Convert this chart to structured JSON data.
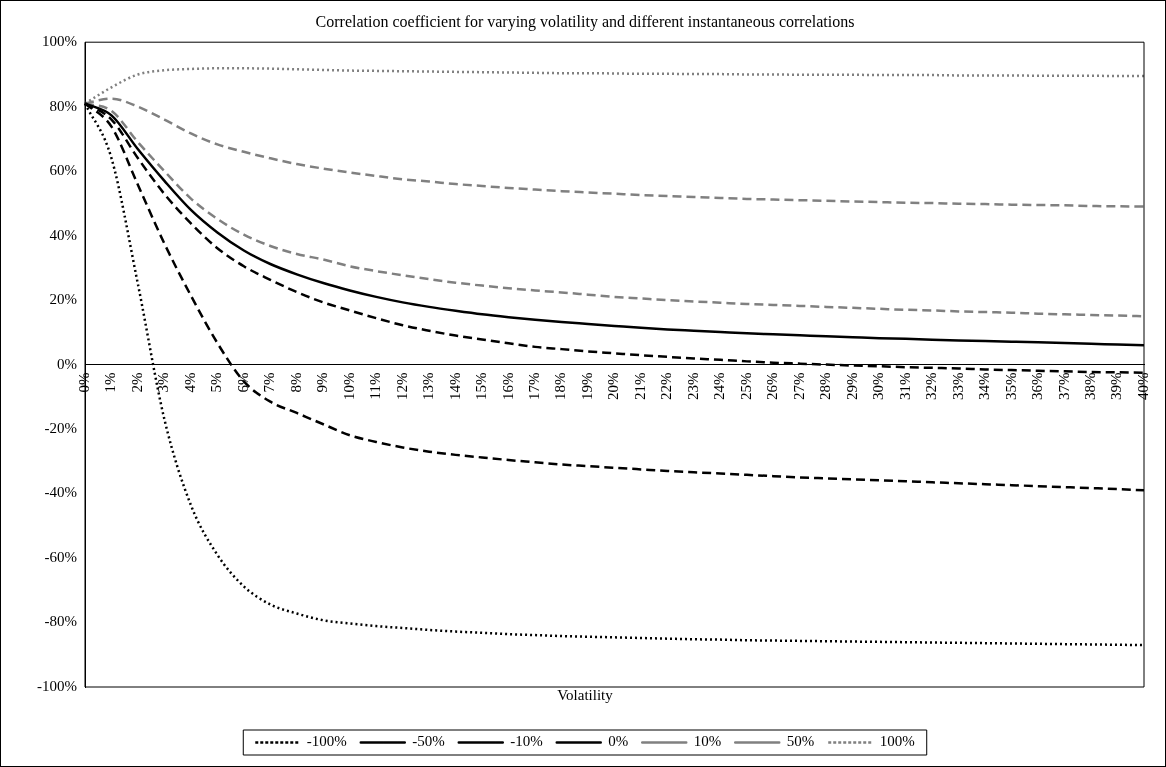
{
  "chart_data": {
    "type": "line",
    "title": "Correlation coefficient for varying volatility and different instantaneous correlations",
    "xlabel": "Volatility",
    "categories": [
      "0%",
      "1%",
      "2%",
      "3%",
      "4%",
      "5%",
      "6%",
      "7%",
      "8%",
      "9%",
      "10%",
      "11%",
      "12%",
      "13%",
      "14%",
      "15%",
      "16%",
      "17%",
      "18%",
      "19%",
      "20%",
      "21%",
      "22%",
      "23%",
      "24%",
      "25%",
      "26%",
      "27%",
      "28%",
      "29%",
      "30%",
      "31%",
      "32%",
      "33%",
      "34%",
      "35%",
      "36%",
      "37%",
      "38%",
      "39%",
      "40%"
    ],
    "ylim": [
      -100,
      100
    ],
    "yticks": [
      {
        "value": -100,
        "label": "-100%"
      },
      {
        "value": -80,
        "label": "-80%"
      },
      {
        "value": -60,
        "label": "-60%"
      },
      {
        "value": -40,
        "label": "-40%"
      },
      {
        "value": -20,
        "label": "-20%"
      },
      {
        "value": 0,
        "label": "0%"
      },
      {
        "value": 20,
        "label": "20%"
      },
      {
        "value": 40,
        "label": "40%"
      },
      {
        "value": 60,
        "label": "60%"
      },
      {
        "value": 80,
        "label": "80%"
      },
      {
        "value": 100,
        "label": "100%"
      }
    ],
    "grid": false,
    "legend": "bottom",
    "marker": "none",
    "series": [
      {
        "name": "-100%",
        "color": "#000000",
        "line_style": "dotted",
        "values": [
          81,
          64,
          24.9,
          -17,
          -43.6,
          -59,
          -68.8,
          -74.4,
          -77.2,
          -79.3,
          -80.3,
          -81.1,
          -81.7,
          -82.3,
          -82.8,
          -83.2,
          -83.6,
          -83.9,
          -84.2,
          -84.4,
          -84.6,
          -84.8,
          -85,
          -85.2,
          -85.3,
          -85.5,
          -85.6,
          -85.7,
          -85.8,
          -85.9,
          -86,
          -86.1,
          -86.2,
          -86.3,
          -86.4,
          -86.5,
          -86.6,
          -86.7,
          -86.8,
          -86.9,
          -87
        ]
      },
      {
        "name": "-50%",
        "color": "#000000",
        "line_style": "dashed",
        "values": [
          81,
          73.8,
          55.7,
          37.5,
          21.4,
          6.7,
          -5.2,
          -11.5,
          -15,
          -18.5,
          -21.9,
          -24,
          -25.7,
          -27,
          -28,
          -28.8,
          -29.6,
          -30.3,
          -31,
          -31.5,
          -32,
          -32.5,
          -33,
          -33.4,
          -33.8,
          -34.2,
          -34.6,
          -35,
          -35.3,
          -35.6,
          -35.9,
          -36.2,
          -36.5,
          -36.8,
          -37.1,
          -37.4,
          -37.7,
          -38,
          -38.3,
          -38.6,
          -39
        ]
      },
      {
        "name": "-10%",
        "color": "#000000",
        "line_style": "dashed",
        "values": [
          81,
          76,
          64,
          52.9,
          43.8,
          36.1,
          30.5,
          26.3,
          22.5,
          19.3,
          16.8,
          14.4,
          12.2,
          10.5,
          9,
          7.8,
          6.6,
          5.5,
          4.8,
          4.1,
          3.5,
          2.9,
          2.4,
          1.9,
          1.5,
          1,
          0.6,
          0.3,
          0,
          -0.3,
          -0.5,
          -0.8,
          -1,
          -1.2,
          -1.5,
          -1.7,
          -1.9,
          -2.1,
          -2.3,
          -2.4,
          -2.5
        ]
      },
      {
        "name": "0%",
        "color": "#000000",
        "line_style": "solid",
        "values": [
          81,
          77.3,
          66.8,
          57,
          48,
          41,
          35.4,
          31.2,
          28,
          25.3,
          23,
          21,
          19.3,
          17.9,
          16.7,
          15.6,
          14.7,
          13.9,
          13.2,
          12.6,
          12,
          11.4,
          10.9,
          10.5,
          10.1,
          9.7,
          9.4,
          9.1,
          8.8,
          8.5,
          8.2,
          8,
          7.7,
          7.5,
          7.3,
          7.1,
          6.9,
          6.7,
          6.5,
          6.2,
          6
        ]
      },
      {
        "name": "10%",
        "color": "#808080",
        "line_style": "dashed",
        "values": [
          81,
          78.7,
          69,
          60,
          51.5,
          45.2,
          40.3,
          36.8,
          34.3,
          32.6,
          30.5,
          29,
          27.7,
          26.5,
          25.4,
          24.5,
          23.7,
          23,
          22.4,
          21.7,
          21,
          20.5,
          20,
          19.6,
          19.2,
          18.8,
          18.5,
          18.2,
          17.9,
          17.6,
          17.3,
          17,
          16.8,
          16.5,
          16.3,
          16.1,
          15.8,
          15.6,
          15.4,
          15.2,
          15
        ]
      },
      {
        "name": "50%",
        "color": "#808080",
        "line_style": "dashed",
        "values": [
          81,
          82.5,
          80,
          76,
          71.7,
          68.3,
          66,
          64,
          62.2,
          60.8,
          59.6,
          58.5,
          57.5,
          56.8,
          56,
          55.4,
          54.8,
          54.3,
          53.8,
          53.4,
          53,
          52.6,
          52.3,
          52,
          51.7,
          51.4,
          51.2,
          51,
          50.8,
          50.6,
          50.4,
          50.2,
          50.1,
          49.9,
          49.8,
          49.6,
          49.5,
          49.4,
          49.2,
          49.1,
          49
        ]
      },
      {
        "name": "100%",
        "color": "#808080",
        "line_style": "dotted",
        "values": [
          81,
          86,
          90,
          91.3,
          91.7,
          91.9,
          91.9,
          91.8,
          91.6,
          91.4,
          91.2,
          91.1,
          91,
          90.9,
          90.8,
          90.7,
          90.6,
          90.5,
          90.4,
          90.4,
          90.3,
          90.2,
          90.2,
          90.1,
          90.1,
          90,
          90,
          89.9,
          89.9,
          89.9,
          89.8,
          89.8,
          89.8,
          89.7,
          89.7,
          89.7,
          89.6,
          89.6,
          89.6,
          89.5,
          89.5
        ]
      }
    ]
  }
}
